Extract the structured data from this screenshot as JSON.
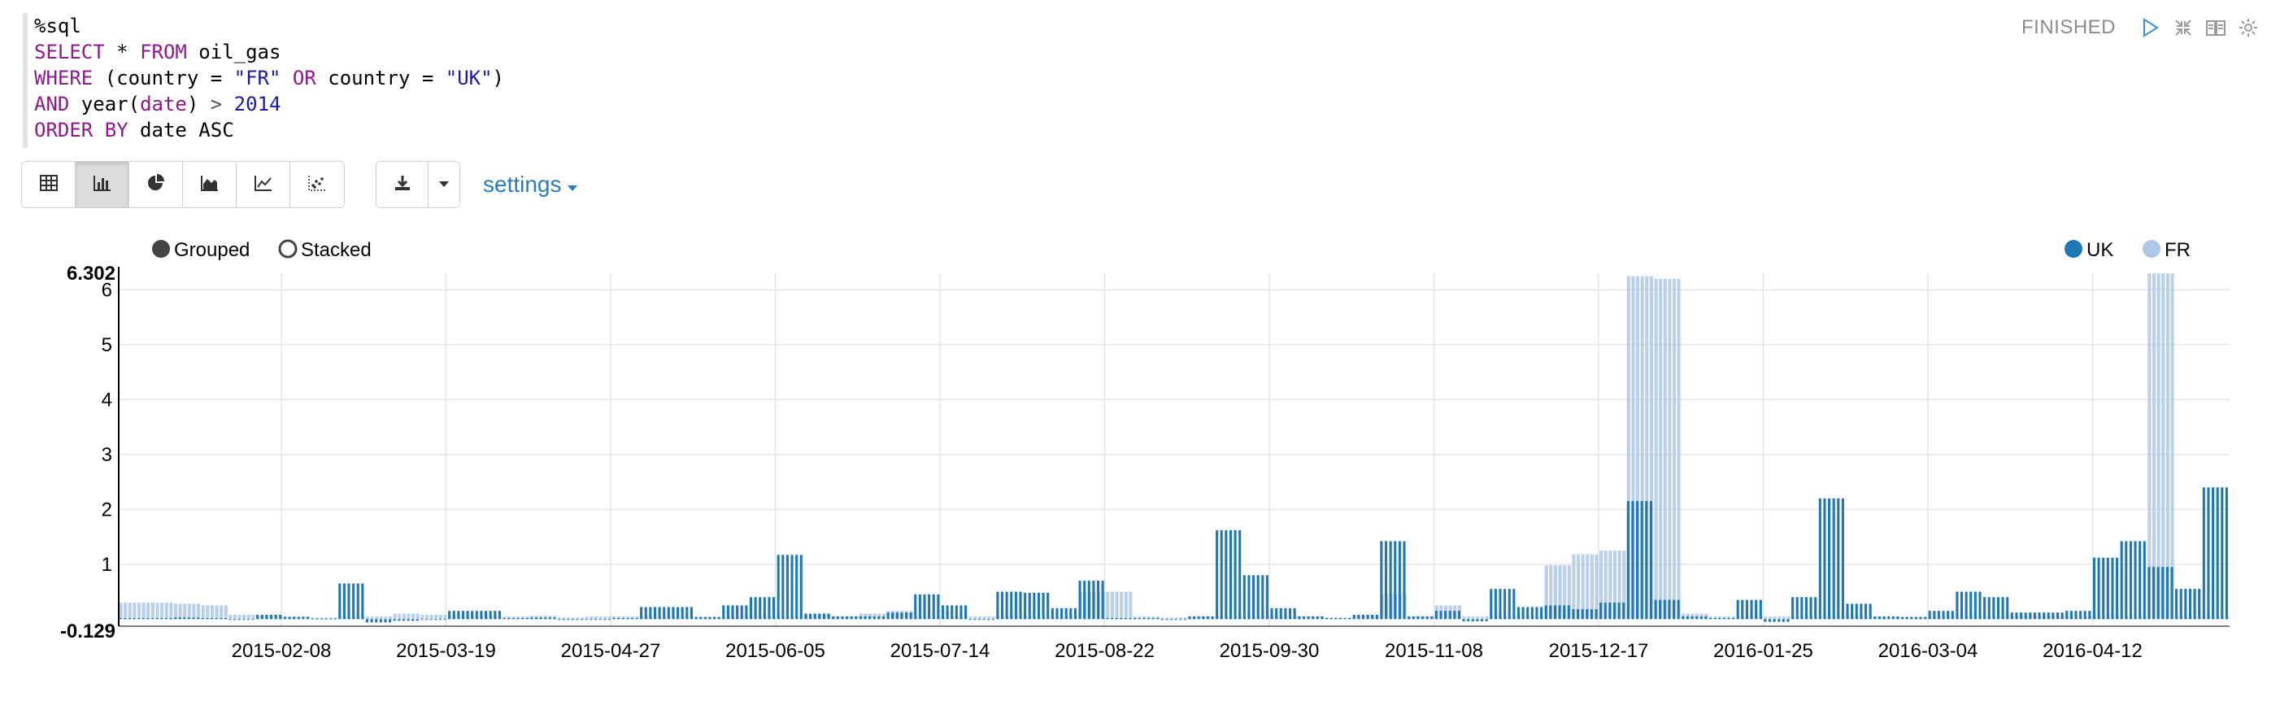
{
  "editor": {
    "lines": [
      [
        {
          "t": "%sql",
          "c": "fn"
        }
      ],
      [
        {
          "t": "SELECT",
          "c": "kw"
        },
        {
          "t": " * ",
          "c": "fn"
        },
        {
          "t": "FROM",
          "c": "kw"
        },
        {
          "t": " oil_gas",
          "c": "fn"
        }
      ],
      [
        {
          "t": "WHERE",
          "c": "kw"
        },
        {
          "t": " (country = ",
          "c": "fn"
        },
        {
          "t": "\"FR\"",
          "c": "str"
        },
        {
          "t": " ",
          "c": "fn"
        },
        {
          "t": "OR",
          "c": "kw"
        },
        {
          "t": " country = ",
          "c": "fn"
        },
        {
          "t": "\"UK\"",
          "c": "str"
        },
        {
          "t": ")",
          "c": "fn"
        }
      ],
      [
        {
          "t": "AND",
          "c": "kw"
        },
        {
          "t": " year(",
          "c": "fn"
        },
        {
          "t": "date",
          "c": "kw"
        },
        {
          "t": ") ",
          "c": "fn"
        },
        {
          "t": ">",
          "c": "op"
        },
        {
          "t": " ",
          "c": "fn"
        },
        {
          "t": "2014",
          "c": "num"
        }
      ],
      [
        {
          "t": "ORDER BY",
          "c": "kw"
        },
        {
          "t": " date ASC",
          "c": "fn"
        }
      ]
    ]
  },
  "status": {
    "text": "FINISHED"
  },
  "toolbar": {
    "chart_buttons": [
      {
        "name": "table-view-button",
        "icon": "table-icon",
        "active": false
      },
      {
        "name": "bar-chart-button",
        "icon": "bar-chart-icon",
        "active": true
      },
      {
        "name": "pie-chart-button",
        "icon": "pie-chart-icon",
        "active": false
      },
      {
        "name": "area-chart-button",
        "icon": "area-chart-icon",
        "active": false
      },
      {
        "name": "line-chart-button",
        "icon": "line-chart-icon",
        "active": false
      },
      {
        "name": "scatter-chart-button",
        "icon": "scatter-chart-icon",
        "active": false
      }
    ],
    "settings_label": "settings"
  },
  "chart_controls": {
    "grouped_label": "Grouped",
    "stacked_label": "Stacked",
    "mode": "Grouped"
  },
  "colors": {
    "uk": "#1f77b4",
    "fr": "#aec7e8",
    "grid": "#e5e5e5",
    "axis": "#000"
  },
  "chart_data": {
    "type": "bar",
    "xlabel": "",
    "ylabel": "",
    "ylim": [
      -0.129,
      6.302
    ],
    "y_ticks": [
      1,
      2,
      3,
      4,
      5,
      6
    ],
    "y_min_label": "-0.129",
    "y_max_label": "6.302",
    "x_tick_labels": [
      "2015-02-08",
      "2015-03-19",
      "2015-04-27",
      "2015-06-05",
      "2015-07-14",
      "2015-08-22",
      "2015-09-30",
      "2015-11-08",
      "2015-12-17",
      "2016-01-25",
      "2016-03-04",
      "2016-04-12"
    ],
    "legend": [
      {
        "name": "UK",
        "color": "#1f77b4",
        "filled": true
      },
      {
        "name": "FR",
        "color": "#aec7e8",
        "filled": true
      }
    ],
    "legend_position": "top-right",
    "bar_groups": [
      {
        "uk": 0.02,
        "fr": 0.3
      },
      {
        "uk": 0.02,
        "fr": 0.3
      },
      {
        "uk": 0.03,
        "fr": 0.28
      },
      {
        "uk": 0.02,
        "fr": 0.25
      },
      {
        "uk": 0.0,
        "fr": 0.08
      },
      {
        "uk": 0.08,
        "fr": 0.05
      },
      {
        "uk": 0.04,
        "fr": 0.05
      },
      {
        "uk": 0.01,
        "fr": 0.03
      },
      {
        "uk": 0.65,
        "fr": 0.05
      },
      {
        "uk": -0.06,
        "fr": 0.05
      },
      {
        "uk": -0.03,
        "fr": 0.1
      },
      {
        "uk": 0.0,
        "fr": 0.08
      },
      {
        "uk": 0.15,
        "fr": 0.05
      },
      {
        "uk": 0.15,
        "fr": 0.05
      },
      {
        "uk": 0.02,
        "fr": 0.05
      },
      {
        "uk": 0.03,
        "fr": 0.06
      },
      {
        "uk": 0.0,
        "fr": 0.03
      },
      {
        "uk": 0.0,
        "fr": 0.05
      },
      {
        "uk": 0.02,
        "fr": 0.05
      },
      {
        "uk": 0.22,
        "fr": 0.05
      },
      {
        "uk": 0.22,
        "fr": 0.05
      },
      {
        "uk": 0.04,
        "fr": 0.03
      },
      {
        "uk": 0.25,
        "fr": 0.05
      },
      {
        "uk": 0.4,
        "fr": 0.05
      },
      {
        "uk": 1.17,
        "fr": 0.05
      },
      {
        "uk": 0.1,
        "fr": 0.08
      },
      {
        "uk": 0.05,
        "fr": 0.05
      },
      {
        "uk": 0.05,
        "fr": 0.1
      },
      {
        "uk": 0.12,
        "fr": 0.15
      },
      {
        "uk": 0.45,
        "fr": 0.05
      },
      {
        "uk": 0.25,
        "fr": 0.05
      },
      {
        "uk": 0.0,
        "fr": 0.05
      },
      {
        "uk": 0.5,
        "fr": 0.05
      },
      {
        "uk": 0.48,
        "fr": 0.05
      },
      {
        "uk": 0.2,
        "fr": 0.05
      },
      {
        "uk": 0.7,
        "fr": 0.5
      },
      {
        "uk": 0.02,
        "fr": 0.5
      },
      {
        "uk": 0.02,
        "fr": 0.05
      },
      {
        "uk": 0.0,
        "fr": 0.03
      },
      {
        "uk": 0.05,
        "fr": 0.05
      },
      {
        "uk": 1.62,
        "fr": 0.05
      },
      {
        "uk": 0.8,
        "fr": 0.05
      },
      {
        "uk": 0.2,
        "fr": 0.05
      },
      {
        "uk": 0.05,
        "fr": 0.05
      },
      {
        "uk": 0.02,
        "fr": 0.03
      },
      {
        "uk": 0.08,
        "fr": 0.05
      },
      {
        "uk": 1.42,
        "fr": 0.45
      },
      {
        "uk": 0.05,
        "fr": 0.05
      },
      {
        "uk": 0.15,
        "fr": 0.25
      },
      {
        "uk": -0.04,
        "fr": 0.05
      },
      {
        "uk": 0.55,
        "fr": 0.05
      },
      {
        "uk": 0.22,
        "fr": 0.05
      },
      {
        "uk": 0.25,
        "fr": 0.98
      },
      {
        "uk": 0.18,
        "fr": 1.18
      },
      {
        "uk": 0.3,
        "fr": 1.25
      },
      {
        "uk": 2.15,
        "fr": 6.25
      },
      {
        "uk": 0.35,
        "fr": 6.2
      },
      {
        "uk": 0.05,
        "fr": 0.1
      },
      {
        "uk": 0.02,
        "fr": 0.05
      },
      {
        "uk": 0.35,
        "fr": 0.05
      },
      {
        "uk": -0.05,
        "fr": 0.05
      },
      {
        "uk": 0.4,
        "fr": 0.05
      },
      {
        "uk": 2.2,
        "fr": 0.05
      },
      {
        "uk": 0.28,
        "fr": 0.05
      },
      {
        "uk": 0.05,
        "fr": 0.03
      },
      {
        "uk": 0.04,
        "fr": 0.03
      },
      {
        "uk": 0.15,
        "fr": 0.05
      },
      {
        "uk": 0.5,
        "fr": 0.05
      },
      {
        "uk": 0.4,
        "fr": 0.05
      },
      {
        "uk": 0.12,
        "fr": 0.05
      },
      {
        "uk": 0.12,
        "fr": 0.05
      },
      {
        "uk": 0.15,
        "fr": 0.05
      },
      {
        "uk": 1.12,
        "fr": 0.05
      },
      {
        "uk": 1.42,
        "fr": 0.05
      },
      {
        "uk": 0.95,
        "fr": 6.3
      },
      {
        "uk": 0.55,
        "fr": 0.05
      },
      {
        "uk": 2.4,
        "fr": 0.05
      }
    ]
  }
}
